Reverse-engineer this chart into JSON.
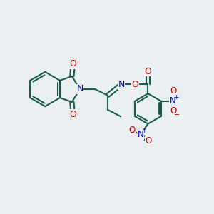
{
  "background_color": "#eaeff1",
  "bond_color": "#1a5c4a",
  "atom_colors": {
    "O": "#cc0000",
    "N": "#0000cc"
  },
  "bond_width": 1.5,
  "figsize": [
    3.0,
    3.0
  ],
  "dpi": 100
}
